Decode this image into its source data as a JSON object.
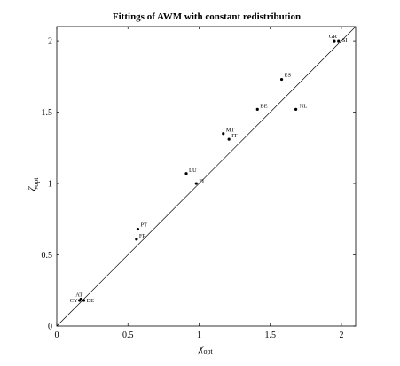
{
  "chart_data": {
    "type": "scatter",
    "title": "Fittings of AWM with constant redistribution",
    "xlabel": {
      "symbol": "χ",
      "sub": "opt"
    },
    "ylabel": {
      "symbol": "ζ",
      "sub": "opt"
    },
    "xlim": [
      0,
      2.1
    ],
    "ylim": [
      0,
      2.1
    ],
    "xticks": [
      0,
      0.5,
      1,
      1.5,
      2
    ],
    "yticks": [
      0,
      0.5,
      1,
      1.5,
      2
    ],
    "xtick_labels": [
      "0",
      "0.5",
      "1",
      "1.5",
      "2"
    ],
    "ytick_labels": [
      "0",
      "0.5",
      "1",
      "1.5",
      "2"
    ],
    "reference_line": {
      "from": [
        0,
        0
      ],
      "to": [
        2.1,
        2.1
      ]
    },
    "grid": false,
    "points": [
      {
        "label": "GR",
        "x": 1.95,
        "y": 2.0
      },
      {
        "label": "SI",
        "x": 1.98,
        "y": 2.0
      },
      {
        "label": "ES",
        "x": 1.58,
        "y": 1.73
      },
      {
        "label": "BE",
        "x": 1.41,
        "y": 1.52
      },
      {
        "label": "NL",
        "x": 1.68,
        "y": 1.52
      },
      {
        "label": "MT",
        "x": 1.17,
        "y": 1.35
      },
      {
        "label": "IT",
        "x": 1.21,
        "y": 1.31
      },
      {
        "label": "LU",
        "x": 0.91,
        "y": 1.07
      },
      {
        "label": "FI",
        "x": 0.98,
        "y": 1.0
      },
      {
        "label": "PT",
        "x": 0.57,
        "y": 0.68
      },
      {
        "label": "FR",
        "x": 0.56,
        "y": 0.61
      },
      {
        "label": "AT",
        "x": 0.17,
        "y": 0.19
      },
      {
        "label": "CY",
        "x": 0.16,
        "y": 0.18
      },
      {
        "label": "DE",
        "x": 0.19,
        "y": 0.18
      }
    ]
  }
}
